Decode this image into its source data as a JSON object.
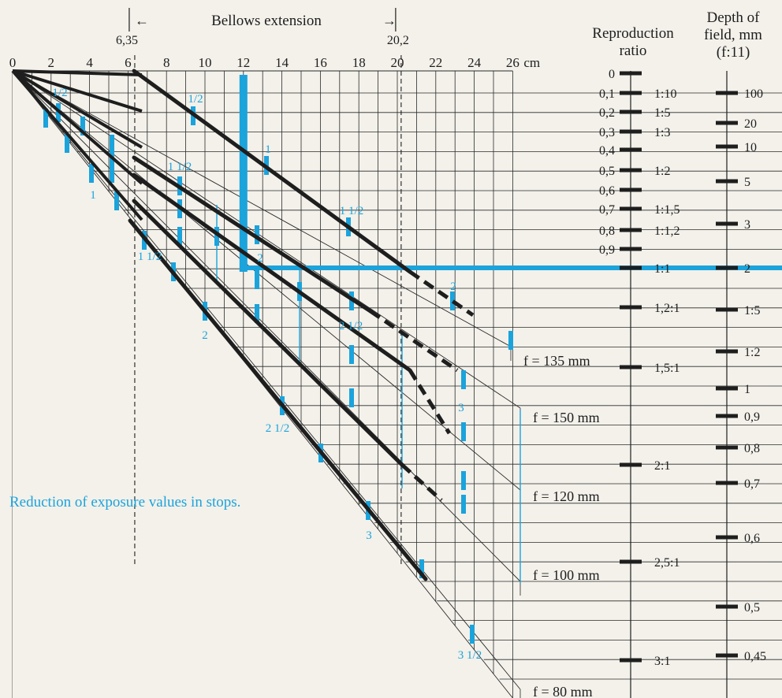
{
  "chart_data": {
    "type": "line",
    "title": "",
    "header": {
      "bellows_label": "Bellows extension",
      "bellows_left_value": "6,35",
      "bellows_right_value": "20,2",
      "left_arrow": "←",
      "right_arrow": "→",
      "repro_title_1": "Reproduction",
      "repro_title_2": "ratio",
      "dof_title_1": "Depth of",
      "dof_title_2": "field, mm",
      "dof_title_3": "(f:11)"
    },
    "x_axis": {
      "unit_label": "cm",
      "range": [
        0,
        26
      ],
      "ticks": [
        {
          "v": 0,
          "label": "0"
        },
        {
          "v": 2,
          "label": "2"
        },
        {
          "v": 4,
          "label": "4"
        },
        {
          "v": 6,
          "label": "6"
        },
        {
          "v": 8,
          "label": "8"
        },
        {
          "v": 10,
          "label": "10"
        },
        {
          "v": 12,
          "label": "12"
        },
        {
          "v": 14,
          "label": "14"
        },
        {
          "v": 16,
          "label": "16"
        },
        {
          "v": 18,
          "label": "18"
        },
        {
          "v": 20,
          "label": "20"
        },
        {
          "v": 22,
          "label": "22"
        },
        {
          "v": 24,
          "label": "24"
        },
        {
          "v": 26,
          "label": "26"
        }
      ]
    },
    "bellows_markers": [
      6.35,
      20.2
    ],
    "lenses": [
      {
        "name": "f = 135 mm",
        "label": "f = 135 mm"
      },
      {
        "name": "f = 150 mm",
        "label": "f = 150 mm"
      },
      {
        "name": "f = 120 mm",
        "label": "f = 120 mm"
      },
      {
        "name": "f = 100 mm",
        "label": "f = 100 mm"
      },
      {
        "name": "f = 80 mm",
        "label": "f = 80 mm"
      }
    ],
    "exposure_labels": [
      {
        "text": "1/2"
      },
      {
        "text": "1/2"
      },
      {
        "text": "1"
      },
      {
        "text": "1"
      },
      {
        "text": "1 1/2"
      },
      {
        "text": "1 1/2"
      },
      {
        "text": "1 1/2"
      },
      {
        "text": "2"
      },
      {
        "text": "2"
      },
      {
        "text": "2"
      },
      {
        "text": "2 1/2"
      },
      {
        "text": "2 1/2"
      },
      {
        "text": "3"
      },
      {
        "text": "3"
      },
      {
        "text": "3 1/2"
      }
    ],
    "reproduction_ratio": [
      {
        "left": "0",
        "right": ""
      },
      {
        "left": "0,1",
        "right": "1:10"
      },
      {
        "left": "0,2",
        "right": "1:5"
      },
      {
        "left": "0,3",
        "right": "1:3"
      },
      {
        "left": "0,4",
        "right": ""
      },
      {
        "left": "0,5",
        "right": "1:2"
      },
      {
        "left": "0,6",
        "right": ""
      },
      {
        "left": "0,7",
        "right": "1:1,5"
      },
      {
        "left": "0,8",
        "right": "1:1,2"
      },
      {
        "left": "0,9",
        "right": ""
      },
      {
        "left": "",
        "right": "1:1"
      },
      {
        "left": "",
        "right": "1,2:1"
      },
      {
        "left": "",
        "right": "1,5:1"
      },
      {
        "left": "",
        "right": "2:1"
      },
      {
        "left": "",
        "right": "2,5:1"
      },
      {
        "left": "",
        "right": "3:1"
      }
    ],
    "depth_of_field": [
      "100",
      "20",
      "10",
      "5",
      "3",
      "2",
      "1:5",
      "1:2",
      "1",
      "0,9",
      "0,8",
      "0,7",
      "0,6",
      "0,5",
      "0,45"
    ],
    "example_bellows": 12,
    "example_ratio": "1:1",
    "example_dof": "2",
    "footnote": "Reduction of exposure values in stops."
  }
}
